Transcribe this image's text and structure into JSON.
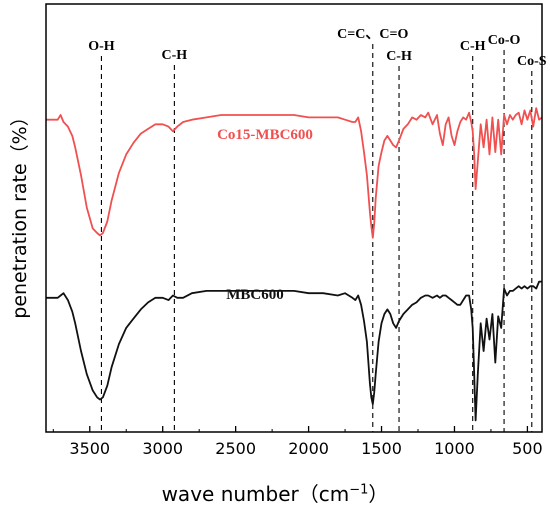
{
  "chart_data": {
    "type": "line",
    "xlabel": "wave number",
    "xlabel_unit_base": "cm",
    "xlabel_unit_exp": "−1",
    "ylabel": "penetration rate（%）",
    "xlim": [
      3800,
      400
    ],
    "x_reversed": true,
    "y_ticks_shown": false,
    "x_ticks": [
      3500,
      3000,
      2500,
      2000,
      1500,
      1000,
      500
    ],
    "grid": false,
    "series": [
      {
        "name": "Co15-MBC600",
        "color": "#f05050",
        "x": [
          3800,
          3760,
          3720,
          3700,
          3680,
          3650,
          3620,
          3600,
          3560,
          3520,
          3480,
          3450,
          3430,
          3410,
          3380,
          3350,
          3300,
          3250,
          3200,
          3150,
          3100,
          3050,
          3000,
          2960,
          2930,
          2900,
          2860,
          2800,
          2700,
          2600,
          2500,
          2400,
          2300,
          2200,
          2100,
          2000,
          1900,
          1800,
          1750,
          1700,
          1680,
          1660,
          1640,
          1620,
          1600,
          1590,
          1580,
          1570,
          1560,
          1550,
          1540,
          1520,
          1500,
          1480,
          1460,
          1440,
          1420,
          1400,
          1380,
          1350,
          1320,
          1290,
          1260,
          1230,
          1200,
          1180,
          1150,
          1120,
          1100,
          1080,
          1060,
          1040,
          1020,
          1000,
          980,
          960,
          940,
          920,
          900,
          885,
          875,
          865,
          855,
          840,
          820,
          800,
          780,
          760,
          740,
          720,
          700,
          680,
          660,
          640,
          620,
          600,
          580,
          560,
          540,
          520,
          500,
          480,
          460,
          440,
          420,
          400
        ],
        "y": [
          90,
          90,
          90,
          92,
          89,
          87,
          83,
          78,
          66,
          52,
          43,
          41,
          40,
          41,
          46,
          55,
          67,
          75,
          80,
          84,
          86,
          88,
          88,
          87,
          85,
          87,
          89,
          90,
          91,
          92,
          92,
          92,
          92,
          92,
          92,
          91,
          91,
          91,
          90,
          89,
          89,
          91,
          85,
          76,
          66,
          58,
          50,
          44,
          39,
          45,
          56,
          70,
          76,
          81,
          83,
          81,
          79,
          78,
          81,
          86,
          88,
          91,
          90,
          92,
          91,
          93,
          88,
          92,
          84,
          79,
          88,
          91,
          83,
          79,
          85,
          89,
          91,
          90,
          93,
          89,
          85,
          75,
          60,
          72,
          88,
          78,
          90,
          75,
          91,
          76,
          90,
          75,
          92,
          88,
          92,
          90,
          92,
          93,
          88,
          94,
          90,
          94,
          87,
          95,
          90,
          91
        ]
      },
      {
        "name": "MBC600",
        "color": "#111111",
        "x": [
          3800,
          3760,
          3720,
          3700,
          3680,
          3650,
          3620,
          3600,
          3560,
          3520,
          3480,
          3450,
          3430,
          3410,
          3380,
          3350,
          3300,
          3250,
          3200,
          3150,
          3100,
          3050,
          3000,
          2960,
          2930,
          2900,
          2860,
          2800,
          2700,
          2600,
          2500,
          2400,
          2300,
          2200,
          2100,
          2000,
          1900,
          1800,
          1750,
          1700,
          1680,
          1660,
          1640,
          1620,
          1600,
          1590,
          1580,
          1570,
          1560,
          1550,
          1540,
          1520,
          1500,
          1480,
          1460,
          1440,
          1420,
          1400,
          1380,
          1350,
          1320,
          1290,
          1260,
          1230,
          1200,
          1180,
          1150,
          1120,
          1100,
          1080,
          1060,
          1040,
          1020,
          1000,
          980,
          960,
          940,
          920,
          900,
          885,
          875,
          865,
          855,
          840,
          820,
          800,
          780,
          760,
          740,
          720,
          700,
          680,
          660,
          640,
          620,
          600,
          580,
          560,
          540,
          520,
          500,
          480,
          460,
          440,
          420,
          400
        ],
        "y": [
          13,
          13,
          13,
          14,
          15,
          12,
          7,
          2,
          -10,
          -20,
          -27,
          -30,
          -31,
          -30,
          -25,
          -17,
          -7,
          0,
          4,
          8,
          11,
          13,
          13,
          12,
          14,
          13,
          13,
          15,
          16,
          16,
          16,
          16,
          16,
          16,
          16,
          15,
          15,
          14,
          15,
          13,
          12,
          14,
          10,
          3,
          -6,
          -15,
          -24,
          -30,
          -33,
          -28,
          -20,
          -6,
          2,
          6,
          8,
          6,
          2,
          0,
          3,
          6,
          8,
          10,
          11,
          13,
          14,
          14,
          13,
          14,
          13,
          14,
          14,
          13,
          12,
          11,
          10,
          10,
          12,
          14,
          14,
          8,
          0,
          -20,
          -40,
          -20,
          2,
          -10,
          4,
          -5,
          6,
          -15,
          5,
          0,
          17,
          14,
          16,
          16,
          17,
          18,
          17,
          18,
          17,
          18,
          18,
          17,
          20,
          20
        ]
      }
    ],
    "annotations": [
      {
        "label": "O-H",
        "x": 3420
      },
      {
        "label": "C-H",
        "x": 2920
      },
      {
        "label": "C=C、C=O",
        "x": 1560
      },
      {
        "label": "C-H",
        "x": 1380
      },
      {
        "label": "C-H",
        "x": 875
      },
      {
        "label": "Co-O",
        "x": 660
      },
      {
        "label": "Co-S",
        "x": 470
      }
    ]
  }
}
